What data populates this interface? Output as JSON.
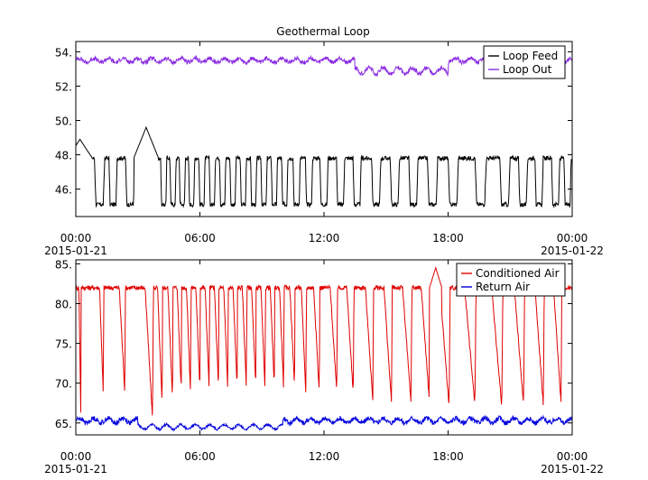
{
  "chart_data": [
    {
      "type": "line",
      "title": "Geothermal Loop",
      "xlabel": "",
      "ylabel": "",
      "x_ticks": [
        "00:00",
        "06:00",
        "12:00",
        "18:00",
        "00:00"
      ],
      "x_tick_dates": [
        "2015-01-21",
        "",
        "",
        "",
        "2015-01-22"
      ],
      "x_range_hours": [
        0,
        24
      ],
      "ylim": [
        44.4,
        54.6
      ],
      "y_ticks": [
        "46.",
        "48.",
        "50.",
        "52.",
        "54."
      ],
      "y_tick_values": [
        46,
        48,
        50,
        52,
        54
      ],
      "legend_position": "top-right",
      "grid": false,
      "series": [
        {
          "name": "Loop Feed",
          "color": "#000000",
          "baseline": 47.8,
          "trough": 45.1,
          "cycles": [
            [
              0.9,
              0.5
            ],
            [
              1.6,
              0.4
            ],
            [
              2.4,
              0.45
            ],
            [
              3.5,
              0.45
            ],
            [
              4.1,
              0.3
            ],
            [
              4.55,
              0.3
            ],
            [
              5.0,
              0.3
            ],
            [
              5.45,
              0.3
            ],
            [
              5.95,
              0.3
            ],
            [
              6.45,
              0.3
            ],
            [
              6.95,
              0.3
            ],
            [
              7.45,
              0.3
            ],
            [
              7.95,
              0.3
            ],
            [
              8.45,
              0.3
            ],
            [
              8.95,
              0.3
            ],
            [
              9.45,
              0.3
            ],
            [
              9.95,
              0.3
            ],
            [
              10.5,
              0.35
            ],
            [
              11.1,
              0.35
            ],
            [
              11.8,
              0.4
            ],
            [
              12.6,
              0.4
            ],
            [
              13.4,
              0.4
            ],
            [
              14.3,
              0.45
            ],
            [
              15.2,
              0.45
            ],
            [
              16.1,
              0.45
            ],
            [
              17.0,
              0.5
            ],
            [
              18.0,
              0.5
            ],
            [
              19.3,
              0.55
            ],
            [
              20.5,
              0.5
            ],
            [
              21.4,
              0.45
            ],
            [
              22.2,
              0.4
            ],
            [
              23.0,
              0.4
            ],
            [
              23.6,
              0.35
            ]
          ],
          "peaks": [
            {
              "x": 0.2,
              "y": 48.9
            },
            {
              "x": 3.4,
              "y": 49.6
            }
          ]
        },
        {
          "name": "Loop Out",
          "color": "#8a2be2",
          "baseline": 53.5,
          "noise": 0.25,
          "dip_range": [
            13.5,
            18.0
          ],
          "dip_value": 52.9
        }
      ]
    },
    {
      "type": "line",
      "title": "",
      "xlabel": "",
      "ylabel": "",
      "x_ticks": [
        "00:00",
        "06:00",
        "12:00",
        "18:00",
        "00:00"
      ],
      "x_tick_dates": [
        "2015-01-21",
        "",
        "",
        "",
        "2015-01-22"
      ],
      "x_range_hours": [
        0,
        24
      ],
      "ylim": [
        63.5,
        85.5
      ],
      "y_ticks": [
        "65.",
        "70.",
        "75.",
        "80.",
        "85."
      ],
      "y_tick_values": [
        65,
        70,
        75,
        80,
        85
      ],
      "legend_position": "top-right",
      "grid": false,
      "series": [
        {
          "name": "Conditioned Air",
          "color": "#e00000",
          "baseline": 82.0,
          "cycles": [
            [
              0.15,
              0.1,
              66.5
            ],
            [
              1.15,
              0.2,
              68.2
            ],
            [
              2.1,
              0.3,
              68.8
            ],
            [
              3.35,
              0.4,
              65.5
            ],
            [
              3.95,
              0.25,
              67.0
            ],
            [
              4.45,
              0.25,
              68.2
            ],
            [
              4.9,
              0.22,
              69.0
            ],
            [
              5.35,
              0.22,
              68.8
            ],
            [
              5.8,
              0.22,
              69.5
            ],
            [
              6.25,
              0.22,
              69.2
            ],
            [
              6.7,
              0.22,
              69.5
            ],
            [
              7.15,
              0.22,
              69.0
            ],
            [
              7.6,
              0.22,
              69.5
            ],
            [
              8.05,
              0.22,
              69.3
            ],
            [
              8.5,
              0.22,
              69.5
            ],
            [
              8.95,
              0.22,
              69.0
            ],
            [
              9.4,
              0.22,
              69.5
            ],
            [
              9.85,
              0.22,
              69.2
            ],
            [
              10.35,
              0.25,
              69.5
            ],
            [
              10.9,
              0.25,
              68.5
            ],
            [
              11.5,
              0.3,
              68.8
            ],
            [
              12.3,
              0.35,
              68.8
            ],
            [
              13.1,
              0.35,
              68.5
            ],
            [
              14.0,
              0.4,
              67.8
            ],
            [
              14.9,
              0.4,
              67.5
            ],
            [
              15.8,
              0.45,
              67.5
            ],
            [
              16.7,
              0.45,
              67.3
            ],
            [
              17.6,
              0.5,
              67.0
            ],
            [
              18.8,
              0.55,
              67.2
            ],
            [
              20.1,
              0.55,
              67.0
            ],
            [
              21.2,
              0.5,
              67.3
            ],
            [
              22.2,
              0.45,
              67.3
            ],
            [
              23.1,
              0.4,
              67.5
            ]
          ],
          "peak": {
            "x": 17.4,
            "y": 84.5
          }
        },
        {
          "name": "Return Air",
          "color": "#0000dd",
          "baseline": 65.3,
          "noise": 0.6,
          "low_range": [
            3.0,
            10.0
          ],
          "low_value": 64.5
        }
      ]
    }
  ]
}
